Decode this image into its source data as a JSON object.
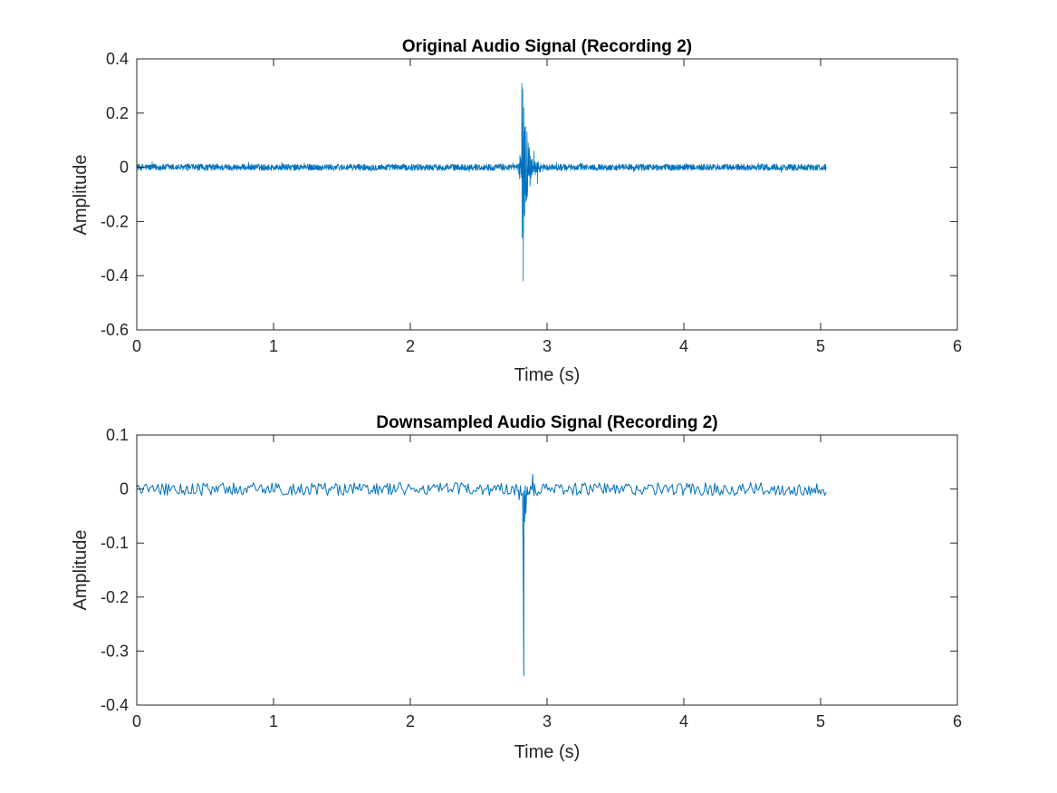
{
  "chart_data": [
    {
      "type": "line",
      "title": "Original Audio Signal (Recording 2)",
      "xlabel": "Time (s)",
      "ylabel": "Amplitude",
      "xlim": [
        0,
        6
      ],
      "ylim": [
        -0.6,
        0.4
      ],
      "xticks": [
        "0",
        "1",
        "2",
        "3",
        "4",
        "5",
        "6"
      ],
      "yticks": [
        "-0.6",
        "-0.4",
        "-0.2",
        "0",
        "0.2",
        "0.4"
      ],
      "grid": false,
      "color": "#0072BD",
      "series": [
        {
          "signal": {
            "duration": 5.04,
            "noise_amplitude": 0.012,
            "event_time": 2.82,
            "event_peak_positive": 0.31,
            "event_peak_negative": -0.42,
            "event_decay_end": 3.0
          }
        }
      ]
    },
    {
      "type": "line",
      "title": "Downsampled Audio Signal (Recording 2)",
      "xlabel": "Time (s)",
      "ylabel": "Amplitude",
      "xlim": [
        0,
        6
      ],
      "ylim": [
        -0.4,
        0.1
      ],
      "xticks": [
        "0",
        "1",
        "2",
        "3",
        "4",
        "5",
        "6"
      ],
      "yticks": [
        "-0.4",
        "-0.3",
        "-0.2",
        "-0.1",
        "0",
        "0.1"
      ],
      "grid": false,
      "color": "#0072BD",
      "series": [
        {
          "signal": {
            "duration": 5.04,
            "noise_amplitude": 0.012,
            "event_time": 2.83,
            "event_peak_positive": 0.027,
            "event_peak_negative": -0.345
          }
        }
      ]
    }
  ]
}
